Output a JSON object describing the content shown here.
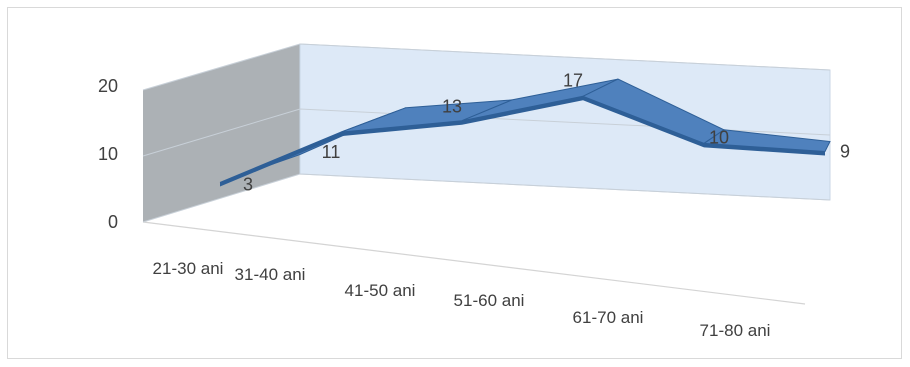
{
  "chart_data": {
    "type": "line",
    "style": "3d",
    "categories": [
      "21-30 ani",
      "31-40 ani",
      "41-50 ani",
      "51-60 ani",
      "61-70 ani",
      "71-80 ani"
    ],
    "values": [
      3,
      11,
      13,
      17,
      10,
      9
    ],
    "data_labels": [
      "3",
      "11",
      "13",
      "17",
      "10",
      "9"
    ],
    "y_ticks": [
      "0",
      "10",
      "20"
    ],
    "ylim": [
      0,
      20
    ],
    "grid": true,
    "legend": "none",
    "colors": {
      "line_top": "#4f81bd",
      "line_side": "#2e5f97",
      "back_wall": "#dde9f7",
      "side_wall": "#a3a8ad",
      "grid": "#c8d0d8",
      "text": "#404040"
    }
  }
}
